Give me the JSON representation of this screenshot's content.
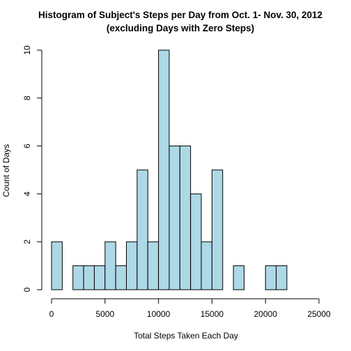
{
  "chart_data": {
    "type": "bar",
    "title_line1": "Histogram of Subject's Steps per Day from Oct. 1- Nov. 30, 2012",
    "title_line2": "(excluding Days with Zero Steps)",
    "xlabel": "Total Steps Taken Each Day",
    "ylabel": "Count of Days",
    "xlim": [
      0,
      25000
    ],
    "ylim": [
      0,
      10
    ],
    "xticks": [
      0,
      5000,
      10000,
      15000,
      20000,
      25000
    ],
    "yticks": [
      0,
      2,
      4,
      6,
      8,
      10
    ],
    "bin_width": 1000,
    "bins": [
      {
        "start": 0,
        "end": 1000,
        "count": 2
      },
      {
        "start": 1000,
        "end": 2000,
        "count": 0
      },
      {
        "start": 2000,
        "end": 3000,
        "count": 1
      },
      {
        "start": 3000,
        "end": 4000,
        "count": 1
      },
      {
        "start": 4000,
        "end": 5000,
        "count": 1
      },
      {
        "start": 5000,
        "end": 6000,
        "count": 2
      },
      {
        "start": 6000,
        "end": 7000,
        "count": 1
      },
      {
        "start": 7000,
        "end": 8000,
        "count": 2
      },
      {
        "start": 8000,
        "end": 9000,
        "count": 5
      },
      {
        "start": 9000,
        "end": 10000,
        "count": 2
      },
      {
        "start": 10000,
        "end": 11000,
        "count": 10
      },
      {
        "start": 11000,
        "end": 12000,
        "count": 6
      },
      {
        "start": 12000,
        "end": 13000,
        "count": 6
      },
      {
        "start": 13000,
        "end": 14000,
        "count": 4
      },
      {
        "start": 14000,
        "end": 15000,
        "count": 2
      },
      {
        "start": 15000,
        "end": 16000,
        "count": 5
      },
      {
        "start": 16000,
        "end": 17000,
        "count": 0
      },
      {
        "start": 17000,
        "end": 18000,
        "count": 1
      },
      {
        "start": 18000,
        "end": 19000,
        "count": 0
      },
      {
        "start": 19000,
        "end": 20000,
        "count": 0
      },
      {
        "start": 20000,
        "end": 21000,
        "count": 1
      },
      {
        "start": 21000,
        "end": 22000,
        "count": 1
      }
    ],
    "bar_color": "#add8e6",
    "bar_border_color": "#000000",
    "grid": false
  }
}
